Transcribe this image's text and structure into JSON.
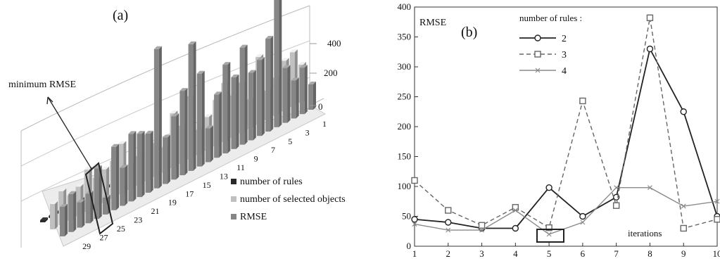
{
  "panels": {
    "a": {
      "label": "(a)",
      "annotation": "minimum RMSE"
    },
    "b": {
      "label": "(b)"
    }
  },
  "chart_data": [
    {
      "type": "bar",
      "projection": "3d",
      "zticks": [
        "0",
        "200",
        "400"
      ],
      "ylim": [
        0,
        400
      ],
      "categories": [
        1,
        2,
        3,
        4,
        5,
        6,
        7,
        8,
        9,
        10,
        11,
        12,
        13,
        14,
        15,
        16,
        17,
        18,
        19,
        20,
        21,
        22,
        23,
        24,
        25,
        26,
        27,
        28,
        29,
        30
      ],
      "category_tick_labels": [
        "1",
        "3",
        "5",
        "7",
        "9",
        "11",
        "13",
        "15",
        "17",
        "19",
        "21",
        "23",
        "25",
        "27",
        "29"
      ],
      "legend": {
        "position": "right",
        "entries": [
          "number of rules",
          "number of selected objects",
          "RMSE"
        ]
      },
      "series": [
        {
          "name": "number of rules",
          "color": "#2a2a2a",
          "values": [
            2,
            2,
            2,
            2,
            2,
            2,
            2,
            2,
            2,
            2,
            2,
            2,
            2,
            2,
            2,
            2,
            2,
            2,
            2,
            2,
            2,
            2,
            2,
            2,
            2,
            2,
            2,
            2,
            2,
            2
          ]
        },
        {
          "name": "number of selected objects",
          "color": "#c0c0c0",
          "values": [
            90,
            130,
            120,
            90,
            70,
            160,
            70,
            120,
            100,
            140,
            110,
            80,
            60,
            150,
            90,
            130,
            60,
            80,
            110,
            70,
            60,
            120,
            90,
            80,
            70,
            100,
            70,
            60,
            80,
            60
          ]
        },
        {
          "name": "RMSE",
          "color": "#868686",
          "values": [
            60,
            110,
            90,
            130,
            340,
            220,
            180,
            160,
            230,
            170,
            210,
            150,
            80,
            220,
            300,
            200,
            150,
            110,
            330,
            140,
            150,
            160,
            90,
            150,
            40,
            120,
            70,
            60,
            90,
            70
          ]
        }
      ],
      "highlight_category": 25
    },
    {
      "type": "line",
      "title": "RMSE",
      "xlabel": "iterations",
      "x": [
        1,
        2,
        3,
        4,
        5,
        6,
        7,
        8,
        9,
        10
      ],
      "xlim": [
        1,
        10
      ],
      "ylim": [
        0,
        400
      ],
      "yticks": [
        0,
        50,
        100,
        150,
        200,
        250,
        300,
        350,
        400
      ],
      "legend": {
        "title": "number of rules :",
        "position": "top-center"
      },
      "series": [
        {
          "name": "2",
          "style": "solid",
          "marker": "circle",
          "color": "#222222",
          "values": [
            45,
            40,
            30,
            30,
            98,
            50,
            82,
            330,
            225,
            50
          ]
        },
        {
          "name": "3",
          "style": "dashed",
          "marker": "square",
          "color": "#666666",
          "values": [
            110,
            60,
            35,
            65,
            31,
            243,
            68,
            382,
            30,
            45
          ]
        },
        {
          "name": "4",
          "style": "solid",
          "marker": "x",
          "color": "#8a8a8a",
          "values": [
            37,
            27,
            27,
            60,
            20,
            40,
            98,
            98,
            67,
            75
          ]
        }
      ],
      "highlight_x": 5
    }
  ]
}
